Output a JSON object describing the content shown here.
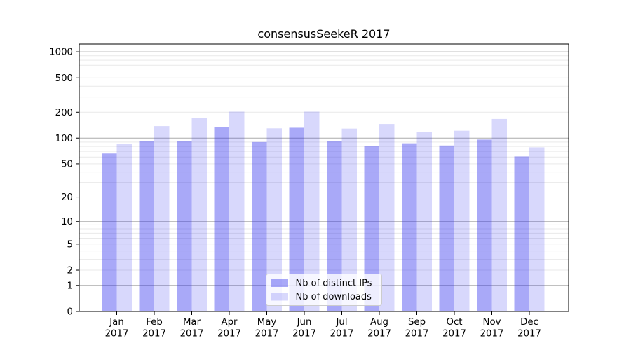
{
  "chart_data": {
    "type": "bar",
    "title": "consensusSeekeR 2017",
    "categories": [
      "Jan",
      "Feb",
      "Mar",
      "Apr",
      "May",
      "Jun",
      "Jul",
      "Aug",
      "Sep",
      "Oct",
      "Nov",
      "Dec"
    ],
    "category_year": "2017",
    "series": [
      {
        "name": "Nb of distinct IPs",
        "observed_color": "#a9a9f8",
        "fill_opacity": 0.4,
        "values": [
          66,
          92,
          92,
          134,
          90,
          132,
          92,
          81,
          87,
          82,
          96,
          61
        ]
      },
      {
        "name": "Nb of downloads",
        "observed_color": "#d8d8f8",
        "fill_opacity": 0.18,
        "values": [
          85,
          138,
          170,
          203,
          130,
          203,
          129,
          146,
          118,
          122,
          167,
          78
        ]
      }
    ],
    "bar_base_color": "#2828ee",
    "yscale": "log1p",
    "yticks": [
      0,
      1,
      2,
      5,
      10,
      20,
      50,
      100,
      200,
      500,
      1000
    ],
    "ylim": [
      0,
      1230
    ],
    "xlabel": "",
    "ylabel": "",
    "grid": {
      "major_at": [
        1,
        10,
        100,
        1000
      ],
      "major_color": "#ababab",
      "minor_color": "#e9e9e9"
    },
    "axis_color": "#000000",
    "legend": {
      "position": "bottom-center",
      "background": "#ffffff",
      "background_opacity": 0.8,
      "border_color": "#cccccc",
      "entries": [
        "Nb of distinct IPs",
        "Nb of downloads"
      ]
    }
  }
}
